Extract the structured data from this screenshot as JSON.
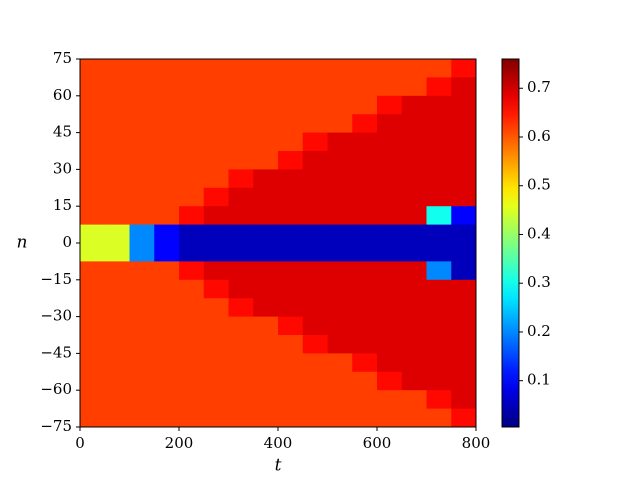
{
  "chart_data": {
    "type": "heatmap",
    "colormap": "jet",
    "xlabel": "t",
    "ylabel": "n",
    "xlim": [
      0,
      800
    ],
    "ylim": [
      -75,
      75
    ],
    "xticks": [
      0,
      200,
      400,
      600,
      800
    ],
    "yticks": [
      {
        "value": -75,
        "label": "−75"
      },
      {
        "value": -60,
        "label": "−60"
      },
      {
        "value": -45,
        "label": "−45"
      },
      {
        "value": -30,
        "label": "−30"
      },
      {
        "value": -15,
        "label": "−15"
      },
      0,
      15,
      30,
      45,
      60,
      75
    ],
    "zlim": [
      0.005,
      0.76
    ],
    "zticks": [
      0.1,
      0.2,
      0.3,
      0.4,
      0.5,
      0.6,
      0.7
    ],
    "xbins": [
      0,
      50,
      100,
      150,
      200,
      250,
      300,
      350,
      400,
      450,
      500,
      550,
      600,
      650,
      700,
      750,
      800
    ],
    "ybins": [
      75,
      67.5,
      60,
      52.5,
      45,
      37.5,
      30,
      22.5,
      15,
      7.5,
      0,
      -7.5,
      -15,
      -22.5,
      -30,
      -37.5,
      -45,
      -52.5,
      -60,
      -67.5,
      -75
    ],
    "z": [
      [
        0.62,
        0.62,
        0.62,
        0.62,
        0.62,
        0.62,
        0.62,
        0.62,
        0.62,
        0.62,
        0.62,
        0.62,
        0.62,
        0.62,
        0.62,
        0.66
      ],
      [
        0.62,
        0.62,
        0.62,
        0.62,
        0.62,
        0.62,
        0.62,
        0.62,
        0.62,
        0.62,
        0.62,
        0.62,
        0.62,
        0.62,
        0.66,
        0.69
      ],
      [
        0.62,
        0.62,
        0.62,
        0.62,
        0.62,
        0.62,
        0.62,
        0.62,
        0.62,
        0.62,
        0.62,
        0.62,
        0.66,
        0.69,
        0.69,
        0.69
      ],
      [
        0.62,
        0.62,
        0.62,
        0.62,
        0.62,
        0.62,
        0.62,
        0.62,
        0.62,
        0.62,
        0.62,
        0.66,
        0.69,
        0.69,
        0.69,
        0.69
      ],
      [
        0.62,
        0.62,
        0.62,
        0.62,
        0.62,
        0.62,
        0.62,
        0.62,
        0.62,
        0.66,
        0.69,
        0.69,
        0.69,
        0.69,
        0.69,
        0.69
      ],
      [
        0.62,
        0.62,
        0.62,
        0.62,
        0.62,
        0.62,
        0.62,
        0.62,
        0.66,
        0.69,
        0.69,
        0.69,
        0.69,
        0.69,
        0.69,
        0.69
      ],
      [
        0.62,
        0.62,
        0.62,
        0.62,
        0.62,
        0.62,
        0.66,
        0.69,
        0.69,
        0.69,
        0.69,
        0.69,
        0.69,
        0.69,
        0.69,
        0.69
      ],
      [
        0.62,
        0.62,
        0.62,
        0.62,
        0.62,
        0.66,
        0.69,
        0.69,
        0.69,
        0.69,
        0.69,
        0.69,
        0.69,
        0.69,
        0.69,
        0.69
      ],
      [
        0.62,
        0.62,
        0.62,
        0.62,
        0.66,
        0.69,
        0.69,
        0.69,
        0.69,
        0.69,
        0.69,
        0.69,
        0.69,
        0.69,
        0.3,
        0.1
      ],
      [
        0.45,
        0.45,
        0.2,
        0.1,
        0.05,
        0.05,
        0.05,
        0.05,
        0.05,
        0.05,
        0.05,
        0.05,
        0.05,
        0.05,
        0.05,
        0.05
      ],
      [
        0.45,
        0.45,
        0.2,
        0.1,
        0.05,
        0.05,
        0.05,
        0.05,
        0.05,
        0.05,
        0.05,
        0.05,
        0.05,
        0.05,
        0.05,
        0.05
      ],
      [
        0.62,
        0.62,
        0.62,
        0.62,
        0.66,
        0.69,
        0.69,
        0.69,
        0.69,
        0.69,
        0.69,
        0.69,
        0.69,
        0.69,
        0.2,
        0.05
      ],
      [
        0.62,
        0.62,
        0.62,
        0.62,
        0.62,
        0.66,
        0.69,
        0.69,
        0.69,
        0.69,
        0.69,
        0.69,
        0.69,
        0.69,
        0.69,
        0.69
      ],
      [
        0.62,
        0.62,
        0.62,
        0.62,
        0.62,
        0.62,
        0.66,
        0.69,
        0.69,
        0.69,
        0.69,
        0.69,
        0.69,
        0.69,
        0.69,
        0.69
      ],
      [
        0.62,
        0.62,
        0.62,
        0.62,
        0.62,
        0.62,
        0.62,
        0.62,
        0.66,
        0.69,
        0.69,
        0.69,
        0.69,
        0.69,
        0.69,
        0.69
      ],
      [
        0.62,
        0.62,
        0.62,
        0.62,
        0.62,
        0.62,
        0.62,
        0.62,
        0.62,
        0.66,
        0.69,
        0.69,
        0.69,
        0.69,
        0.69,
        0.69
      ],
      [
        0.62,
        0.62,
        0.62,
        0.62,
        0.62,
        0.62,
        0.62,
        0.62,
        0.62,
        0.62,
        0.62,
        0.66,
        0.69,
        0.69,
        0.69,
        0.69
      ],
      [
        0.62,
        0.62,
        0.62,
        0.62,
        0.62,
        0.62,
        0.62,
        0.62,
        0.62,
        0.62,
        0.62,
        0.62,
        0.66,
        0.69,
        0.69,
        0.69
      ],
      [
        0.62,
        0.62,
        0.62,
        0.62,
        0.62,
        0.62,
        0.62,
        0.62,
        0.62,
        0.62,
        0.62,
        0.62,
        0.62,
        0.62,
        0.66,
        0.69
      ],
      [
        0.62,
        0.62,
        0.62,
        0.62,
        0.62,
        0.62,
        0.62,
        0.62,
        0.62,
        0.62,
        0.62,
        0.62,
        0.62,
        0.62,
        0.62,
        0.66
      ]
    ]
  }
}
